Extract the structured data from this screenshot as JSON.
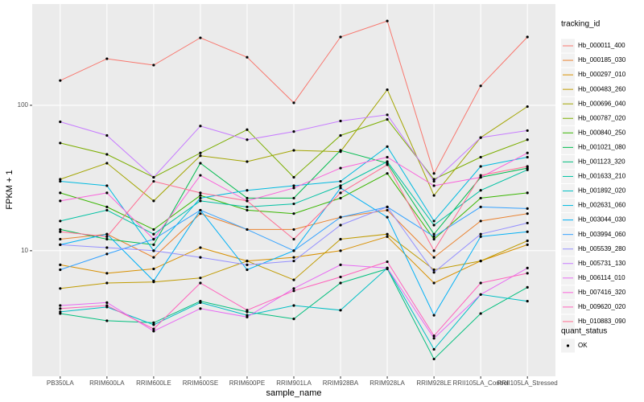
{
  "chart_data": {
    "type": "line",
    "x_label": "sample_name",
    "y_label": "FPKM + 1",
    "categories": [
      "PB350LA",
      "RRIM600LA",
      "RRIM600LE",
      "RRIM600SE",
      "RRIM600PE",
      "RRIM901LA",
      "RRIM928BA",
      "RRIM928LA",
      "RRIM928LE",
      "RRII105LA_Control",
      "RRII105LA_Stressed"
    ],
    "log_scale": true,
    "grid": true,
    "ylim": [
      1.37,
      497
    ],
    "yticks": [
      10,
      100
    ],
    "legend_title": "tracking_id",
    "legend_position": "right",
    "point_legend_title": "quant_status",
    "point_legend_label": "OK",
    "point_color": "#000000",
    "series": [
      {
        "name": "Hb_000011_400",
        "color": "#F8766D",
        "values": [
          148,
          209,
          189,
          291,
          214,
          104,
          295,
          380,
          34,
          136,
          295
        ]
      },
      {
        "name": "Hb_000185_030",
        "color": "#EA8331",
        "values": [
          12,
          13,
          9,
          18,
          14,
          14,
          17,
          19,
          9,
          16,
          18
        ]
      },
      {
        "name": "Hb_000297_010",
        "color": "#D89000",
        "values": [
          8,
          7,
          7.5,
          10.5,
          8.5,
          9,
          10,
          12.5,
          6,
          8.5,
          11
        ]
      },
      {
        "name": "Hb_000483_260",
        "color": "#C09B00",
        "values": [
          5.5,
          6,
          6.1,
          6.5,
          8.5,
          6.3,
          12,
          13,
          7.4,
          8.5,
          11.7
        ]
      },
      {
        "name": "Hb_000696_040",
        "color": "#A3A500",
        "values": [
          31,
          40,
          22,
          45,
          41,
          49,
          48,
          128,
          24,
          60,
          98
        ]
      },
      {
        "name": "Hb_000787_020",
        "color": "#7CAE00",
        "values": [
          55,
          46,
          32,
          47,
          68,
          32,
          62,
          80,
          31,
          44,
          58
        ]
      },
      {
        "name": "Hb_000840_250",
        "color": "#39B600",
        "values": [
          25,
          20,
          14,
          24,
          19,
          18,
          23,
          34,
          12,
          23,
          25
        ]
      },
      {
        "name": "Hb_001021_080",
        "color": "#00BB4E",
        "values": [
          14,
          12,
          11,
          40,
          23,
          23,
          49,
          40,
          13,
          32,
          37
        ]
      },
      {
        "name": "Hb_001123_320",
        "color": "#00BF7D",
        "values": [
          3.7,
          3.3,
          3.2,
          4.5,
          3.8,
          3.4,
          6,
          7.5,
          1.8,
          3.7,
          5.6
        ]
      },
      {
        "name": "Hb_001633_210",
        "color": "#00C1A3",
        "values": [
          16,
          19,
          13,
          22,
          20,
          21,
          28,
          41,
          15,
          26,
          36
        ]
      },
      {
        "name": "Hb_001892_020",
        "color": "#00BFC4",
        "values": [
          3.8,
          4.1,
          3.1,
          4.4,
          3.6,
          4.2,
          3.9,
          7.6,
          2.1,
          5,
          4.5
        ]
      },
      {
        "name": "Hb_002631_060",
        "color": "#00BAE0",
        "values": [
          30,
          28,
          10,
          23,
          26,
          28,
          30,
          52,
          16,
          38,
          44
        ]
      },
      {
        "name": "Hb_003044_030",
        "color": "#00B0F6",
        "values": [
          11,
          13,
          6.2,
          19,
          7.4,
          10,
          27,
          17,
          3.6,
          12.5,
          13.5
        ]
      },
      {
        "name": "Hb_003994_060",
        "color": "#35A2FF",
        "values": [
          7.4,
          9.5,
          12,
          19,
          14,
          10,
          17,
          20,
          12.5,
          20,
          19.5
        ]
      },
      {
        "name": "Hb_005539_280",
        "color": "#9590FF",
        "values": [
          11,
          10.5,
          10,
          9,
          8,
          8.5,
          15,
          20,
          7.1,
          13,
          15.5
        ]
      },
      {
        "name": "Hb_005731_130",
        "color": "#C77CFF",
        "values": [
          77,
          62,
          32,
          72,
          58,
          66,
          78,
          86,
          30,
          60,
          67
        ]
      },
      {
        "name": "Hb_006114_010",
        "color": "#E76BF3",
        "values": [
          4.2,
          4.4,
          2.8,
          4,
          3.5,
          5.5,
          8,
          7.6,
          2.5,
          5,
          7.6
        ]
      },
      {
        "name": "Hb_007416_320",
        "color": "#FA62DB",
        "values": [
          22,
          25,
          12,
          33,
          22,
          27,
          37,
          44,
          28,
          32,
          47
        ]
      },
      {
        "name": "Hb_009620_020",
        "color": "#FF62BC",
        "values": [
          4,
          4.2,
          2.9,
          6,
          3.9,
          5.3,
          6.6,
          8.4,
          2.6,
          6,
          7
        ]
      },
      {
        "name": "Hb_010883_090",
        "color": "#FF6C91",
        "values": [
          13.5,
          12.5,
          30,
          25,
          22,
          12,
          25,
          39,
          10,
          33,
          38
        ]
      }
    ]
  }
}
